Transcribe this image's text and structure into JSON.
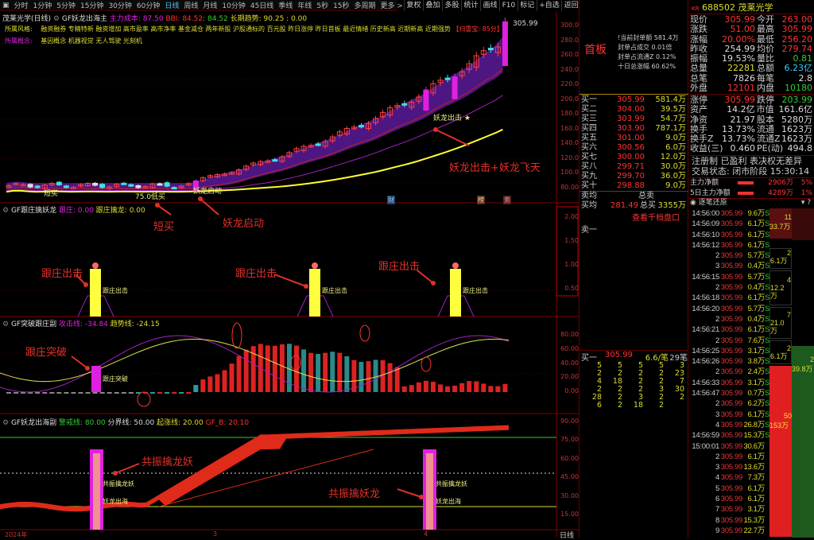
{
  "toolbar": {
    "periods": [
      "分时",
      "1分钟",
      "5分钟",
      "15分钟",
      "30分钟",
      "60分钟",
      "日线",
      "周线",
      "月线",
      "10分钟",
      "45日线",
      "季线",
      "年线",
      "5秒",
      "15秒",
      "多周期",
      "更多 >"
    ],
    "active": "日线",
    "right_buttons": [
      "复权",
      "叠加",
      "多股",
      "统计",
      "画线",
      "F10",
      "标记",
      "+自选",
      "返回"
    ]
  },
  "main_chart": {
    "title": "茂莱光学(日线)",
    "indicator": "GF妖龙出海主",
    "cost_label": "主力成本: 87.50",
    "bbi_label": "BBI: 84.52",
    "bbi_value": ": 84.52",
    "trend_label": "长期趋势: 90.25 : 0.00",
    "style_label": "所属风格:",
    "style_tags": "融资融券 专精特新 融资增加 高市盈率 高市净率 基金减仓 两年新股 沪股通标的 百元股 昨日涨停 昨日首板 最近情绪 历史新高 近期新高 近期强势",
    "score": "【扫雷宝: 85分】",
    "concept_label": "所属概念:",
    "concept_tags": "基因概念 机器视觉 无人驾驶 光刻机",
    "last_price": "305.99",
    "y_ticks": [
      "300.0",
      "280.0",
      "260.0",
      "240.0",
      "220.0",
      "200.0",
      "180.0",
      "160.0",
      "140.0",
      "120.0",
      "100.0",
      "80.00"
    ],
    "signals": {
      "short_buy": "短买",
      "sell_buy": "75.0低买",
      "start": "妖龙启动",
      "strike": "妖龙出击 ★"
    },
    "badges": [
      "财",
      "榜",
      "务"
    ]
  },
  "annotations": {
    "a1": "短买",
    "a2": "妖龙启动",
    "a3": "妖龙出击+妖龙飞天",
    "a4": "跟庄出击",
    "a5": "跟庄突破",
    "a6": "共振擒龙妖",
    "a7": "共振擒妖龙"
  },
  "panel2": {
    "title": "GF跟庄擒妖龙",
    "l1": "跟庄: 0.00",
    "l2": "跟庄擒龙: 0.00",
    "y_ticks": [
      "2.00",
      "1.50",
      "1.00",
      "0.50"
    ],
    "bar_label": "跟庄出击"
  },
  "panel3": {
    "title": "GF突破跟庄副",
    "l1": "攻击线: -34.84",
    "l2": "趋势线: -24.15",
    "y_ticks": [
      "80.00",
      "60.00",
      "40.00",
      "20.00",
      "0.00"
    ],
    "bar_label": "跟庄突破"
  },
  "panel4": {
    "title": "GF妖龙出海副",
    "l1": "警戒线: 80.00",
    "l2": "分界线: 50.00",
    "l3": "起涨线: 20.00",
    "l4": "GF_B: 20.10",
    "y_ticks": [
      "90.00",
      "75.00",
      "60.00",
      "45.00",
      "30.00",
      "15.00"
    ],
    "bar_label1": "共振擒龙妖",
    "bar_label2": "妖龙出海"
  },
  "date_axis": {
    "labels": [
      "2024年",
      "3",
      "4"
    ],
    "period": "日线"
  },
  "orderbook": {
    "board": "首板",
    "info": [
      "!当前封单额 581.4万",
      "封单占成交 0.01倍",
      "封单占流通Z 0.12%",
      "十日总涨幅 60.62%"
    ],
    "bids": [
      [
        "买一",
        "305.99",
        "581.4万"
      ],
      [
        "买二",
        "304.00",
        "39.5万"
      ],
      [
        "买三",
        "303.99",
        "54.7万"
      ],
      [
        "买四",
        "303.90",
        "787.1万"
      ],
      [
        "买五",
        "301.00",
        "9.0万"
      ],
      [
        "买六",
        "300.56",
        "6.0万"
      ],
      [
        "买七",
        "300.00",
        "12.0万"
      ],
      [
        "买八",
        "299.71",
        "30.0万"
      ],
      [
        "买九",
        "299.70",
        "36.0万"
      ],
      [
        "买十",
        "298.88",
        "9.0万"
      ]
    ],
    "avg_sell_label": "卖均",
    "total_sell_label": "总卖",
    "avg_buy_label": "买均",
    "avg_buy": "281.49",
    "total_buy_label": "总买",
    "total_buy": "3355万",
    "depth_link": "查看千档盘口",
    "sell1": "卖一",
    "queue_head": [
      "买一",
      "305.99",
      "6.6/笔",
      "29笔"
    ],
    "queue": [
      [
        "5",
        "5",
        "5",
        "5",
        "3"
      ],
      [
        "2",
        "2",
        "2",
        "2",
        "23"
      ],
      [
        "4",
        "18",
        "2",
        "2",
        "7"
      ],
      [
        "2",
        "2",
        "2",
        "3",
        "30"
      ],
      [
        "28",
        "2",
        "3",
        "2",
        "2"
      ],
      [
        "6",
        "2",
        "18",
        "2",
        ""
      ]
    ]
  },
  "quote": {
    "code": "688502",
    "name": "茂莱光学",
    "rows1": [
      [
        "现价",
        "305.99",
        "今开",
        "263.00"
      ],
      [
        "涨跌",
        "51.00",
        "最高",
        "305.99"
      ],
      [
        "涨幅",
        "20.00%",
        "最低",
        "256.20"
      ],
      [
        "昨收",
        "254.99",
        "均价",
        "279.74"
      ],
      [
        "振幅",
        "19.53%",
        "量比",
        "0.81"
      ],
      [
        "总量",
        "22281",
        "总额",
        "6.23亿"
      ],
      [
        "总笔",
        "7826",
        "每笔",
        "2.8"
      ],
      [
        "外盘",
        "12101",
        "内盘",
        "10180"
      ]
    ],
    "rows2": [
      [
        "涨停",
        "305.99",
        "跌停",
        "203.99"
      ],
      [
        "资产",
        "14.2亿",
        "市值",
        "161.6亿"
      ],
      [
        "净资",
        "21.97",
        "股本",
        "5280万"
      ],
      [
        "换手",
        "13.73%",
        "流通",
        "1623万"
      ],
      [
        "换手Z",
        "13.73%",
        "流通Z",
        "1623万"
      ],
      [
        "收益(三)",
        "0.460",
        "PE(动)",
        "494.8"
      ]
    ],
    "tags": "注册制 已盈利 表决权无差异",
    "status": "交易状态: 闭市阶段 15:30:14",
    "flow": [
      [
        "主力净额",
        "2906万",
        "5%"
      ],
      [
        "5日主力净额",
        "4289万",
        "1%"
      ]
    ],
    "ticks_title": "逐笔还原"
  },
  "ticks": [
    [
      "14:56:00",
      "305.99",
      "9.6万",
      "S"
    ],
    [
      "14:56:09",
      "305.99",
      "6.1万",
      "S"
    ],
    [
      "14:56:10",
      "305.99",
      "6.1万",
      "S"
    ],
    [
      "14:56:12",
      "305.99",
      "6.1万",
      "S"
    ],
    [
      "2",
      "305.99",
      "5.7万",
      "S"
    ],
    [
      "3",
      "305.99",
      "0.4万",
      "S"
    ],
    [
      "14:56:15",
      "305.99",
      "5.7万",
      "S"
    ],
    [
      "2",
      "305.99",
      "0.4万",
      "S"
    ],
    [
      "14:56:18",
      "305.99",
      "6.1万",
      "S"
    ],
    [
      "14:56:20",
      "305.99",
      "5.7万",
      "S"
    ],
    [
      "2",
      "305.99",
      "0.4万",
      "S"
    ],
    [
      "14:56:21",
      "305.99",
      "6.1万",
      "S"
    ],
    [
      "2",
      "305.99",
      "7.6万",
      "S"
    ],
    [
      "14:56:25",
      "305.99",
      "3.1万",
      "S"
    ],
    [
      "14:56:26",
      "305.99",
      "3.8万",
      "S"
    ],
    [
      "2",
      "305.99",
      "2.4万",
      "S"
    ],
    [
      "14:56:33",
      "305.99",
      "3.1万",
      "S"
    ],
    [
      "14:56:47",
      "305.99",
      "0.7万",
      "S"
    ],
    [
      "2",
      "305.99",
      "6.2万",
      "S"
    ],
    [
      "3",
      "305.99",
      "6.1万",
      "S"
    ],
    [
      "4",
      "305.99",
      "26.8万",
      "S"
    ],
    [
      "14:56:59",
      "305.99",
      "15.3万",
      "S"
    ],
    [
      "15:00:01",
      "305.99",
      "30.6万",
      ""
    ],
    [
      "2",
      "305.99",
      "6.1万",
      ""
    ],
    [
      "3",
      "305.99",
      "13.6万",
      ""
    ],
    [
      "4",
      "305.99",
      "7.3万",
      ""
    ],
    [
      "5",
      "305.99",
      "6.1万",
      ""
    ],
    [
      "6",
      "305.99",
      "6.1万",
      ""
    ],
    [
      "7",
      "305.99",
      "3.1万",
      ""
    ],
    [
      "8",
      "305.99",
      "15.3万",
      ""
    ],
    [
      "9",
      "305.99",
      "22.7万",
      ""
    ]
  ],
  "tick_blocks": [
    [
      "11",
      "33.7万"
    ],
    [
      "2",
      "6.1万"
    ],
    [
      "4",
      "12.2万"
    ],
    [
      "7",
      "21.0万"
    ],
    [
      "2",
      "6.1万"
    ],
    [
      "2",
      "39.8万"
    ],
    [
      "50",
      "153万"
    ]
  ],
  "tick_counts": [
    "3",
    "2",
    "2",
    "2",
    "2",
    "6.1万",
    "2",
    "6.1万",
    "2",
    "2",
    "6.1万",
    "2",
    "2",
    "1",
    "2",
    "6.1万",
    "1",
    "13",
    "",
    "5",
    "10",
    "2",
    "4",
    "2",
    "2",
    "2",
    "1",
    "5"
  ],
  "colors": {
    "up": "#ff3333",
    "down": "#33cc33",
    "magenta": "#e020e0",
    "yellow": "#ffff30",
    "grid": "#800000"
  }
}
